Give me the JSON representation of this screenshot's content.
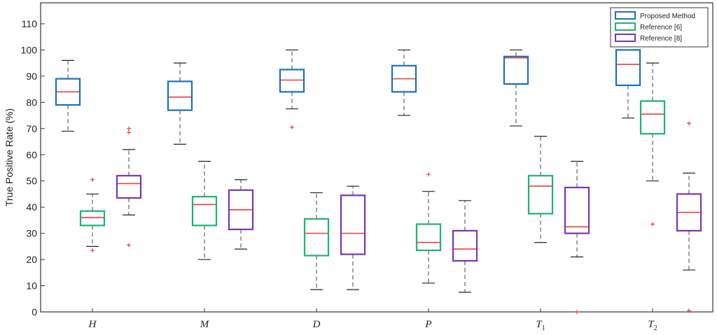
{
  "chart_data": {
    "type": "box",
    "ylabel": "True Positive Rate (%)",
    "xlabel": "",
    "ylim": [
      0,
      118
    ],
    "yticks": [
      0,
      10,
      20,
      30,
      40,
      50,
      60,
      70,
      80,
      90,
      100,
      110
    ],
    "categories": [
      {
        "base": "H",
        "sub": ""
      },
      {
        "base": "M",
        "sub": ""
      },
      {
        "base": "D",
        "sub": ""
      },
      {
        "base": "P",
        "sub": ""
      },
      {
        "base": "T",
        "sub": "1"
      },
      {
        "base": "T",
        "sub": "2"
      }
    ],
    "legend_position": "top-right",
    "series": [
      {
        "name": "Proposed Method",
        "color": "#1a6fc4",
        "median_color": "#e84040",
        "boxes": [
          {
            "whisker_low": 69,
            "q1": 79,
            "median": 84,
            "q3": 89,
            "whisker_high": 96,
            "outliers": []
          },
          {
            "whisker_low": 64,
            "q1": 77,
            "median": 82,
            "q3": 88,
            "whisker_high": 95,
            "outliers": []
          },
          {
            "whisker_low": 77.5,
            "q1": 84,
            "median": 88.5,
            "q3": 92.5,
            "whisker_high": 100,
            "outliers": [
              70.5
            ]
          },
          {
            "whisker_low": 75,
            "q1": 84,
            "median": 89,
            "q3": 94,
            "whisker_high": 100,
            "outliers": []
          },
          {
            "whisker_low": 71,
            "q1": 87,
            "median": 97,
            "q3": 97.5,
            "whisker_high": 100,
            "outliers": []
          },
          {
            "whisker_low": 74,
            "q1": 86.5,
            "median": 94.5,
            "q3": 100,
            "whisker_high": 100,
            "outliers": []
          }
        ]
      },
      {
        "name": "Reference [6]",
        "color": "#1db371",
        "median_color": "#e84040",
        "boxes": [
          {
            "whisker_low": 25,
            "q1": 33,
            "median": 36,
            "q3": 38.5,
            "whisker_high": 45,
            "outliers": [
              23.5,
              50.5
            ]
          },
          {
            "whisker_low": 20,
            "q1": 33,
            "median": 41,
            "q3": 44,
            "whisker_high": 57.5,
            "outliers": []
          },
          {
            "whisker_low": 8.5,
            "q1": 21.5,
            "median": 30,
            "q3": 35.5,
            "whisker_high": 45.5,
            "outliers": []
          },
          {
            "whisker_low": 11,
            "q1": 23.5,
            "median": 26.5,
            "q3": 33.5,
            "whisker_high": 46,
            "outliers": [
              52.5
            ]
          },
          {
            "whisker_low": 26.5,
            "q1": 37.5,
            "median": 48,
            "q3": 52,
            "whisker_high": 67,
            "outliers": []
          },
          {
            "whisker_low": 50,
            "q1": 68,
            "median": 75.5,
            "q3": 80.5,
            "whisker_high": 95,
            "outliers": [
              33.5
            ]
          }
        ]
      },
      {
        "name": "Reference [8]",
        "color": "#7a35b5",
        "median_color": "#e84040",
        "boxes": [
          {
            "whisker_low": 37,
            "q1": 43.5,
            "median": 49,
            "q3": 52,
            "whisker_high": 62,
            "outliers": [
              25.5,
              68.5,
              70
            ]
          },
          {
            "whisker_low": 24,
            "q1": 31.5,
            "median": 39,
            "q3": 46.5,
            "whisker_high": 50.5,
            "outliers": []
          },
          {
            "whisker_low": 8.5,
            "q1": 22,
            "median": 30,
            "q3": 44.5,
            "whisker_high": 48,
            "outliers": []
          },
          {
            "whisker_low": 7.5,
            "q1": 19.5,
            "median": 24,
            "q3": 31,
            "whisker_high": 42.5,
            "outliers": []
          },
          {
            "whisker_low": 21,
            "q1": 30,
            "median": 32.5,
            "q3": 47.5,
            "whisker_high": 57.5,
            "outliers": [
              0
            ]
          },
          {
            "whisker_low": 16,
            "q1": 31,
            "median": 38,
            "q3": 45,
            "whisker_high": 53,
            "outliers": [
              0.5,
              72
            ]
          }
        ]
      }
    ]
  }
}
